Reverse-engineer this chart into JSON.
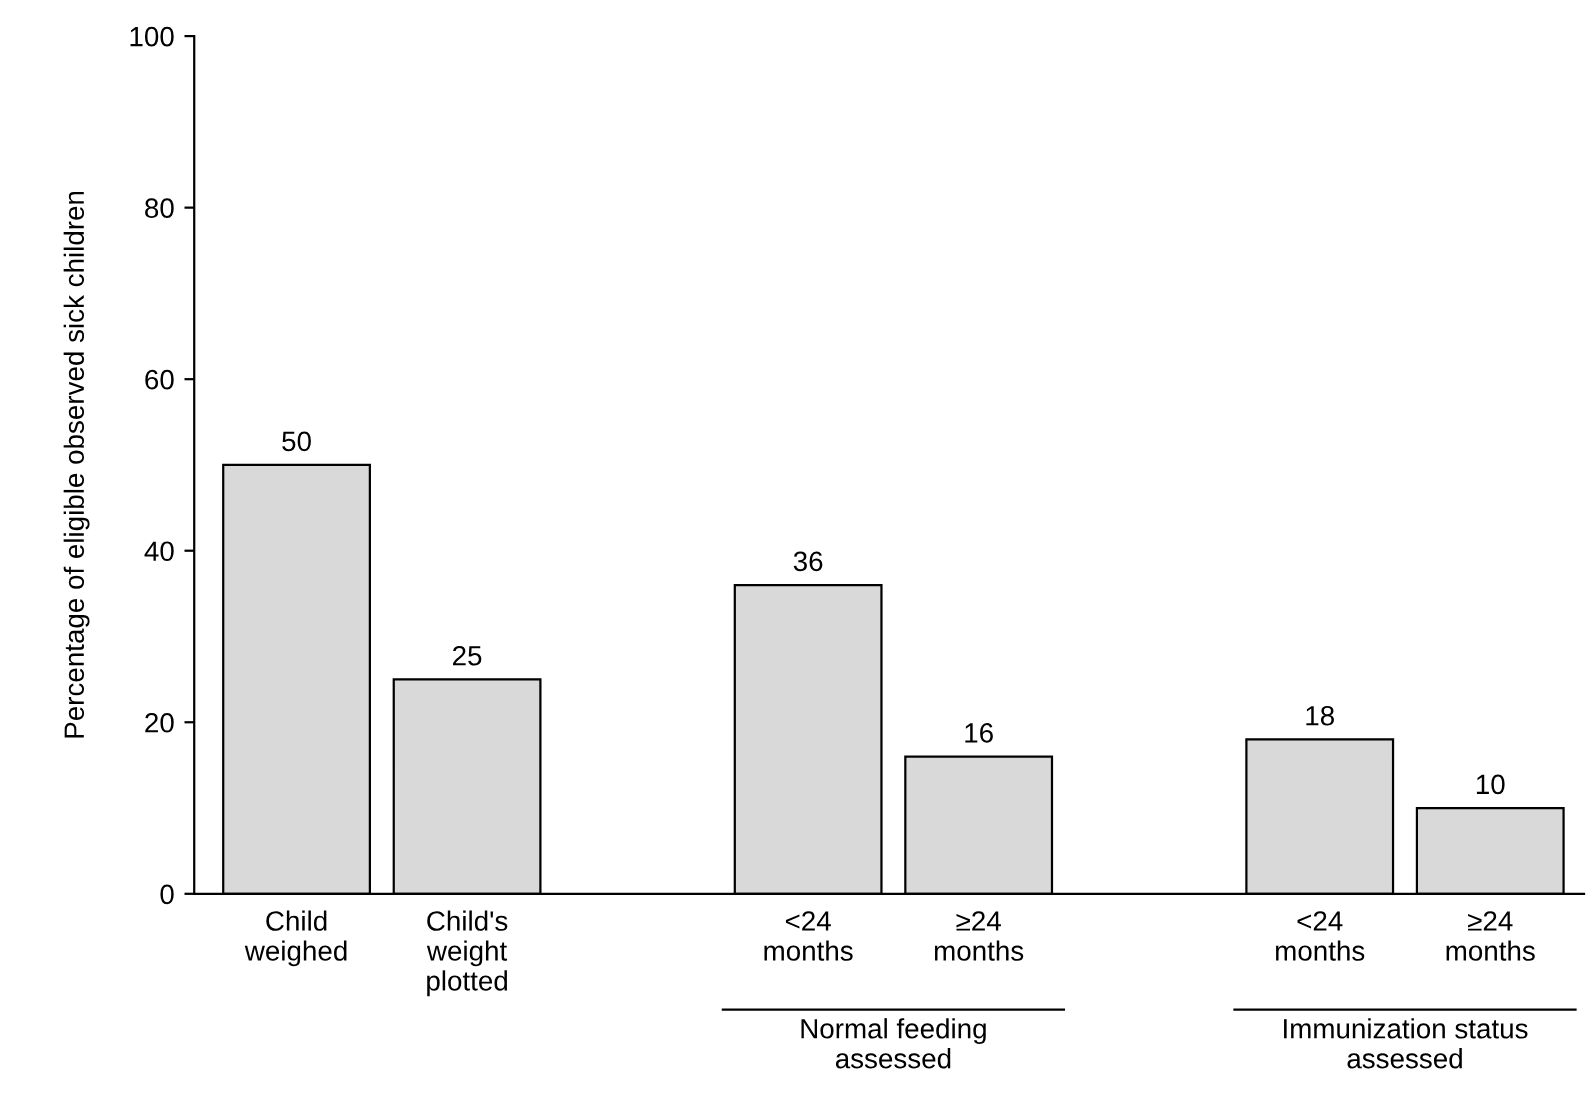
{
  "chart_data": {
    "type": "bar",
    "ylabel": "Percentage of eligible observed sick children",
    "categories": [
      "Child\nweighed",
      "Child's\nweight\nplotted",
      null,
      "<24\nmonths",
      "≥24\nmonths",
      null,
      "<24\nmonths",
      "≥24\nmonths"
    ],
    "values": [
      50,
      25,
      null,
      36,
      16,
      null,
      18,
      10
    ],
    "color": "#d9d9d9",
    "ylim": [
      0,
      100
    ],
    "yticks": [
      0,
      20,
      40,
      60,
      80,
      100
    ],
    "data_labels": true,
    "grid": false,
    "legend": false,
    "annotations": [
      "Normal feeding\nassessed",
      "Immunization status\nassessed"
    ]
  }
}
